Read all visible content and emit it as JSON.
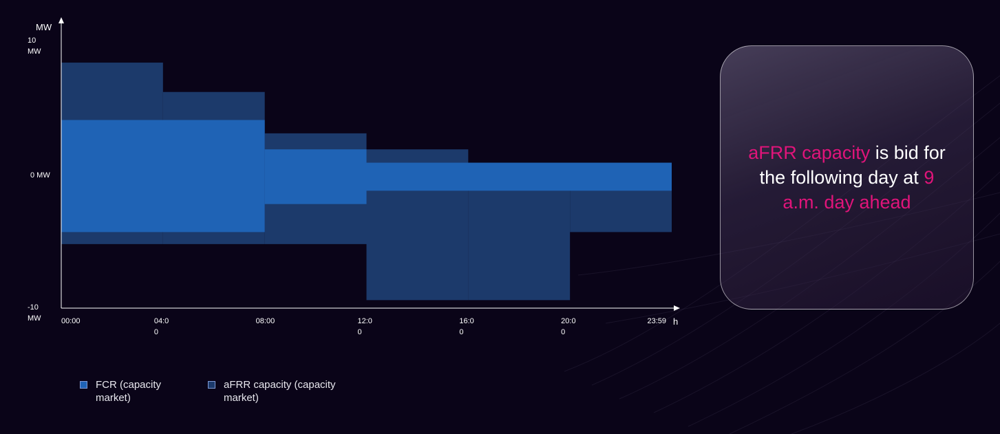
{
  "chart_data": {
    "type": "area",
    "xlabel": "h",
    "ylabel": "MW",
    "xlim": [
      0,
      24
    ],
    "ylim": [
      -10,
      10
    ],
    "x_ticks": [
      {
        "x": 0,
        "line1": "00:00",
        "line2": ""
      },
      {
        "x": 4,
        "line1": "04:0",
        "line2": "0"
      },
      {
        "x": 8,
        "line1": "08:00",
        "line2": ""
      },
      {
        "x": 12,
        "line1": "12:0",
        "line2": "0"
      },
      {
        "x": 16,
        "line1": "16:0",
        "line2": "0"
      },
      {
        "x": 20,
        "line1": "20:0",
        "line2": "0"
      },
      {
        "x": 24,
        "line1": "23:59",
        "line2": ""
      }
    ],
    "y_ticks": [
      {
        "y": 10,
        "line1": "10",
        "line2": "MW"
      },
      {
        "y": 0,
        "line1": "0 MW",
        "line2": ""
      },
      {
        "y": -10,
        "line1": "-10",
        "line2": "MW"
      }
    ],
    "series": [
      {
        "name": "aFRR capacity (capacity market)",
        "color": "#1c3a6b",
        "blocks": [
          {
            "x0": 0,
            "x1": 4,
            "y0": -5.2,
            "y1": 8.4
          },
          {
            "x0": 4,
            "x1": 8,
            "y0": -5.2,
            "y1": 6.2
          },
          {
            "x0": 8,
            "x1": 12,
            "y0": -5.2,
            "y1": 3.1
          },
          {
            "x0": 12,
            "x1": 16,
            "y0": -9.4,
            "y1": 1.9
          },
          {
            "x0": 16,
            "x1": 20,
            "y0": -9.4,
            "y1": 0.9
          },
          {
            "x0": 20,
            "x1": 24,
            "y0": -4.3,
            "y1": 0.9
          }
        ]
      },
      {
        "name": "FCR (capacity market)",
        "color": "#1f63b5",
        "blocks": [
          {
            "x0": 0,
            "x1": 8,
            "y0": -4.3,
            "y1": 4.1
          },
          {
            "x0": 8,
            "x1": 12,
            "y0": -2.2,
            "y1": 1.9
          },
          {
            "x0": 12,
            "x1": 24,
            "y0": -1.2,
            "y1": 0.9
          }
        ]
      }
    ]
  },
  "legend": [
    {
      "label": "FCR (capacity market)",
      "color": "#1f63b5"
    },
    {
      "label": "aFRR capacity (capacity market)",
      "color": "#1c3a6b"
    }
  ],
  "callout": {
    "highlight_1": "aFRR capacity",
    "text_1": " is bid for the following day at ",
    "highlight_2": "9 a.m. day ahead",
    "highlight_color": "#e0147a"
  }
}
